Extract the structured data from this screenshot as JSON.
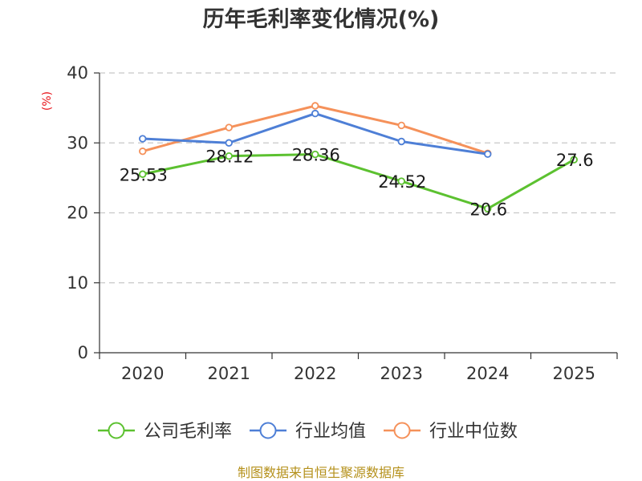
{
  "chart_data": {
    "type": "line",
    "title": "历年毛利率变化情况(%)",
    "ylabel": "(%)",
    "xlabel": "",
    "categories": [
      "2020",
      "2021",
      "2022",
      "2023",
      "2024",
      "2025"
    ],
    "ylim": [
      0,
      40
    ],
    "yticks": [
      0,
      10,
      20,
      30,
      40
    ],
    "grid": true,
    "legend_position": "bottom",
    "series": [
      {
        "name": "公司毛利率",
        "color": "#5cc130",
        "values": [
          25.53,
          28.12,
          28.36,
          24.52,
          20.6,
          27.6
        ],
        "labels": [
          "25.53",
          "28.12",
          "28.36",
          "24.52",
          "20.6",
          "27.6"
        ]
      },
      {
        "name": "行业均值",
        "color": "#4e7fd6",
        "values": [
          30.6,
          30.0,
          34.2,
          30.2,
          28.4,
          null
        ]
      },
      {
        "name": "行业中位数",
        "color": "#f5915a",
        "values": [
          28.8,
          32.2,
          35.3,
          32.5,
          28.5,
          null
        ]
      }
    ]
  },
  "source": "制图数据来自恒生聚源数据库"
}
